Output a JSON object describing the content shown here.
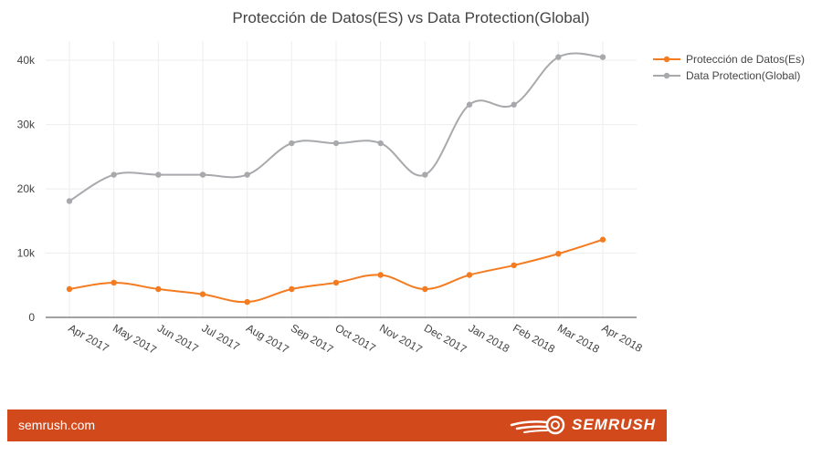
{
  "chart_data": {
    "type": "line",
    "title": "Protección de Datos(ES) vs Data Protection(Global)",
    "xlabel": "",
    "ylabel": "",
    "categories": [
      "Apr 2017",
      "May 2017",
      "Jun 2017",
      "Jul 2017",
      "Aug 2017",
      "Sep 2017",
      "Oct 2017",
      "Nov 2017",
      "Dec 2017",
      "Jan 2018",
      "Feb 2018",
      "Mar 2018",
      "Apr 2018"
    ],
    "ylim": [
      0,
      43000
    ],
    "yticks": [
      0,
      10000,
      20000,
      30000,
      40000
    ],
    "ytick_labels": [
      "0",
      "10k",
      "20k",
      "30k",
      "40k"
    ],
    "grid": true,
    "legend_position": "top-right",
    "series": [
      {
        "name": "Protección de Datos(Es)",
        "color": "#f47b20",
        "values": [
          4400,
          5400,
          4400,
          3600,
          2400,
          4400,
          5400,
          6600,
          4400,
          6600,
          8100,
          9900,
          12100
        ]
      },
      {
        "name": "Data Protection(Global)",
        "color": "#a7a9ac",
        "values": [
          18100,
          22200,
          22200,
          22200,
          22200,
          27100,
          27100,
          27100,
          22200,
          33100,
          33100,
          40500,
          40500
        ]
      }
    ]
  },
  "footer": {
    "site": "semrush.com",
    "brand": "SEMRUSH",
    "background_color": "#d2491b"
  }
}
